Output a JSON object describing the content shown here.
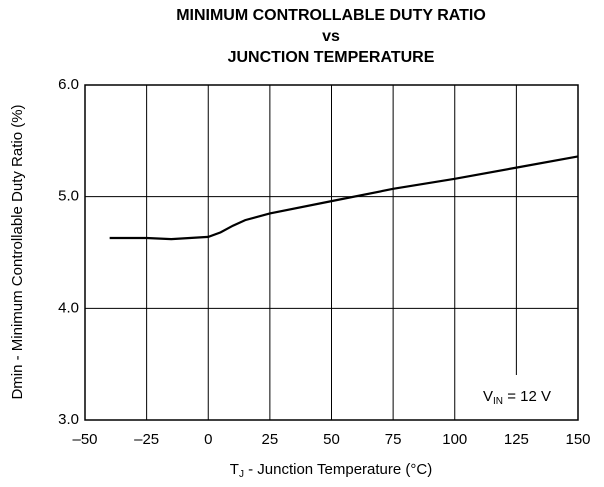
{
  "chart_data": {
    "type": "line",
    "title": [
      "MINIMUM CONTROLLABLE DUTY RATIO",
      "vs",
      "JUNCTION TEMPERATURE"
    ],
    "x_label": {
      "text": "T",
      "sub": "J",
      "rest": " - Junction Temperature (°C)"
    },
    "y_label": "Dmin - Minimum Controllable Duty Ratio (%)",
    "annotation": {
      "text": "V",
      "sub": "IN",
      "rest": " = 12 V"
    },
    "x": [
      -40,
      -25,
      -15,
      0,
      5,
      10,
      15,
      25,
      50,
      75,
      100,
      125,
      150
    ],
    "series": [
      {
        "color": "#000000",
        "values": [
          4.63,
          4.63,
          4.62,
          4.64,
          4.68,
          4.74,
          4.79,
          4.85,
          4.96,
          5.07,
          5.16,
          5.26,
          5.36
        ]
      }
    ],
    "xlim": [
      -50,
      150
    ],
    "xticks": [
      {
        "value": -50,
        "label": "–50"
      },
      {
        "value": -25,
        "label": "–25"
      },
      0,
      25,
      50,
      75,
      100,
      125,
      150
    ],
    "ylim": [
      3,
      6
    ],
    "yticks": [
      {
        "value": 3,
        "label": "3.0"
      },
      {
        "value": 4,
        "label": "4.0"
      },
      {
        "value": 5,
        "label": "5.0"
      },
      {
        "value": 6,
        "label": "6.0"
      }
    ],
    "grid": true
  }
}
